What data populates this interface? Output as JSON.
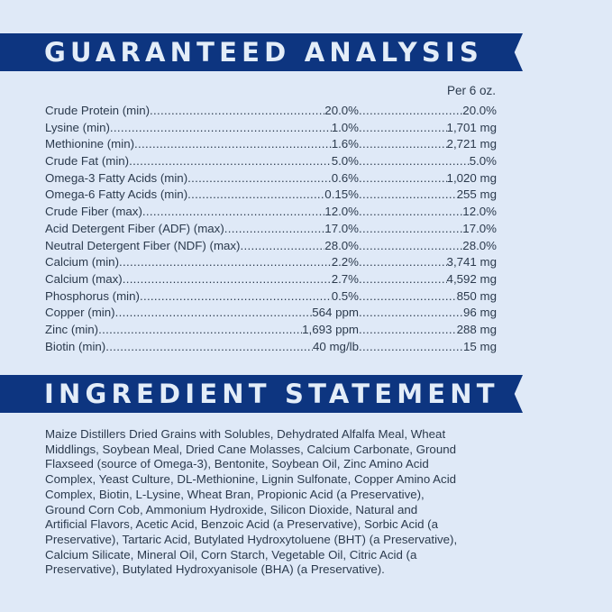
{
  "guaranteed_analysis": {
    "title": "GUARANTEED ANALYSIS",
    "column_header": "Per 6 oz.",
    "rows": [
      {
        "label": "Crude Protein (min)",
        "value": " 20.0%",
        "per_serving": "20.0%"
      },
      {
        "label": "Lysine (min)",
        "value": " 1.0%",
        "per_serving": " 1,701 mg"
      },
      {
        "label": "Methionine (min)",
        "value": "1.6%",
        "per_serving": " 2,721 mg"
      },
      {
        "label": "Crude Fat (min) ",
        "value": " 5.0%",
        "per_serving": " 5.0%"
      },
      {
        "label": "Omega-3 Fatty Acids (min) ",
        "value": " 0.6%",
        "per_serving": " 1,020 mg"
      },
      {
        "label": "Omega-6 Fatty Acids (min) ",
        "value": "0.15%",
        "per_serving": "255 mg"
      },
      {
        "label": "Crude Fiber (max) ",
        "value": "12.0%",
        "per_serving": "12.0%"
      },
      {
        "label": "Acid Detergent Fiber (ADF) (max) ",
        "value": "17.0%",
        "per_serving": " 17.0%"
      },
      {
        "label": "Neutral Detergent Fiber (NDF) (max)",
        "value": "28.0%",
        "per_serving": "28.0%"
      },
      {
        "label": "Calcium (min)",
        "value": "2.2%",
        "per_serving": " 3,741 mg"
      },
      {
        "label": "Calcium (max)",
        "value": "2.7%",
        "per_serving": "4,592 mg"
      },
      {
        "label": "Phosphorus (min) ",
        "value": " 0.5%",
        "per_serving": "850 mg"
      },
      {
        "label": "Copper (min)",
        "value": "564 ppm",
        "per_serving": "96 mg"
      },
      {
        "label": "Zinc (min)",
        "value": "1,693 ppm",
        "per_serving": "288 mg"
      },
      {
        "label": "Biotin (min)",
        "value": "40 mg/lb",
        "per_serving": "15 mg"
      }
    ]
  },
  "ingredient_statement": {
    "title": "INGREDIENT STATEMENT",
    "lines": [
      "Maize Distillers Dried Grains with Solubles, Dehydrated Alfalfa Meal, Wheat",
      "Middlings, Soybean Meal, Dried Cane Molasses, Calcium Carbonate, Ground",
      "Flaxseed (source of Omega-3), Bentonite, Soybean Oil, Zinc Amino Acid",
      "Complex, Yeast Culture, DL-Methionine, Lignin Sulfonate, Copper Amino Acid",
      "Complex, Biotin, L-Lysine, Wheat Bran, Propionic Acid (a Preservative),",
      "Ground Corn Cob, Ammonium Hydroxide, Silicon Dioxide, Natural and",
      "Artificial Flavors, Acetic Acid, Benzoic Acid (a Preservative), Sorbic Acid (a",
      "Preservative), Tartaric Acid, Butylated Hydroxytoluene (BHT) (a Preservative),",
      "Calcium Silicate, Mineral Oil, Corn Starch, Vegetable Oil, Citric Acid (a",
      "Preservative), Butylated Hydroxyanisole (BHA) (a Preservative)."
    ]
  },
  "colors": {
    "background": "#dfe9f7",
    "banner": "#0d3580",
    "banner_text": "#e3edf8",
    "text": "#2b3a4d"
  }
}
